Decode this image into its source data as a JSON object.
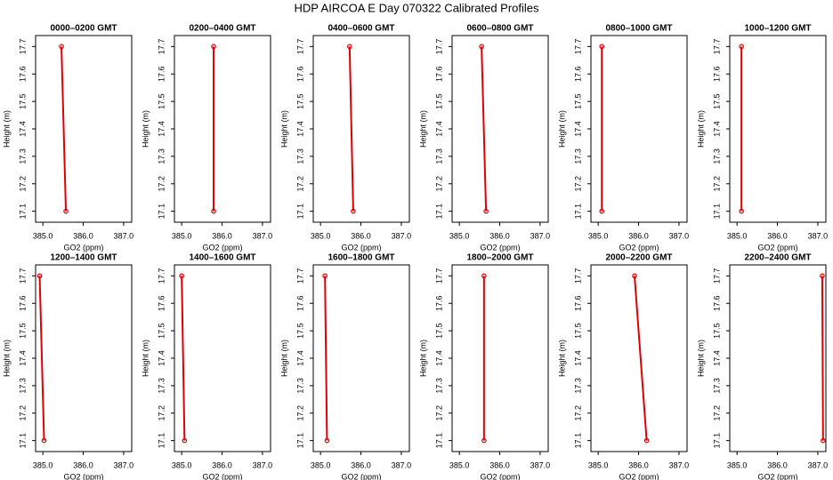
{
  "title": "HDP AIRCOA E  Day 070322  Calibrated Profiles",
  "chart_data": [
    {
      "type": "line",
      "title": "0000–0200 GMT",
      "x_label": "GO2 (ppm)",
      "y_label": "Height (m)",
      "x": [
        385.46,
        385.57
      ],
      "values": [
        17.7,
        17.1
      ],
      "color": "#e00000",
      "xlim": [
        384.82,
        387.2
      ],
      "ylim": [
        17.06,
        17.74
      ],
      "xticks": [
        {
          "value": 385,
          "label": "385.0"
        },
        {
          "value": 386,
          "label": "386.0"
        },
        {
          "value": 387,
          "label": "387.0"
        }
      ],
      "yticks": [
        17.1,
        17.2,
        17.3,
        17.4,
        17.5,
        17.6,
        17.7
      ]
    },
    {
      "type": "line",
      "title": "0200–0400 GMT",
      "x_label": "GO2 (ppm)",
      "y_label": "Height (m)",
      "x": [
        385.79,
        385.79
      ],
      "values": [
        17.7,
        17.1
      ],
      "color": "#e00000",
      "xlim": [
        384.82,
        387.2
      ],
      "ylim": [
        17.06,
        17.74
      ],
      "xticks": [
        {
          "value": 385,
          "label": "385.0"
        },
        {
          "value": 386,
          "label": "386.0"
        },
        {
          "value": 387,
          "label": "387.0"
        }
      ],
      "yticks": [
        17.1,
        17.2,
        17.3,
        17.4,
        17.5,
        17.6,
        17.7
      ]
    },
    {
      "type": "line",
      "title": "0400–0600 GMT",
      "x_label": "GO2 (ppm)",
      "y_label": "Height (m)",
      "x": [
        385.72,
        385.81
      ],
      "values": [
        17.7,
        17.1
      ],
      "color": "#e00000",
      "xlim": [
        384.82,
        387.2
      ],
      "ylim": [
        17.06,
        17.74
      ],
      "xticks": [
        {
          "value": 385,
          "label": "385.0"
        },
        {
          "value": 386,
          "label": "386.0"
        },
        {
          "value": 387,
          "label": "387.0"
        }
      ],
      "yticks": [
        17.1,
        17.2,
        17.3,
        17.4,
        17.5,
        17.6,
        17.7
      ]
    },
    {
      "type": "line",
      "title": "0600–0800 GMT",
      "x_label": "GO2 (ppm)",
      "y_label": "Height (m)",
      "x": [
        385.55,
        385.66
      ],
      "values": [
        17.7,
        17.1
      ],
      "color": "#e00000",
      "xlim": [
        384.82,
        387.2
      ],
      "ylim": [
        17.06,
        17.74
      ],
      "xticks": [
        {
          "value": 385,
          "label": "385.0"
        },
        {
          "value": 386,
          "label": "386.0"
        },
        {
          "value": 387,
          "label": "387.0"
        }
      ],
      "yticks": [
        17.1,
        17.2,
        17.3,
        17.4,
        17.5,
        17.6,
        17.7
      ]
    },
    {
      "type": "line",
      "title": "0800–1000 GMT",
      "x_label": "GO2 (ppm)",
      "y_label": "Height (m)",
      "x": [
        385.09,
        385.09
      ],
      "values": [
        17.7,
        17.1
      ],
      "color": "#e00000",
      "xlim": [
        384.82,
        387.2
      ],
      "ylim": [
        17.06,
        17.74
      ],
      "xticks": [
        {
          "value": 385,
          "label": "385.0"
        },
        {
          "value": 386,
          "label": "386.0"
        },
        {
          "value": 387,
          "label": "387.0"
        }
      ],
      "yticks": [
        17.1,
        17.2,
        17.3,
        17.4,
        17.5,
        17.6,
        17.7
      ]
    },
    {
      "type": "line",
      "title": "1000–1200 GMT",
      "x_label": "GO2 (ppm)",
      "y_label": "Height (m)",
      "x": [
        385.11,
        385.11
      ],
      "values": [
        17.7,
        17.1
      ],
      "color": "#e00000",
      "xlim": [
        384.82,
        387.2
      ],
      "ylim": [
        17.06,
        17.74
      ],
      "xticks": [
        {
          "value": 385,
          "label": "385.0"
        },
        {
          "value": 386,
          "label": "386.0"
        },
        {
          "value": 387,
          "label": "387.0"
        }
      ],
      "yticks": [
        17.1,
        17.2,
        17.3,
        17.4,
        17.5,
        17.6,
        17.7
      ]
    },
    {
      "type": "line",
      "title": "1200–1400 GMT",
      "x_label": "GO2 (ppm)",
      "y_label": "Height (m)",
      "x": [
        384.92,
        385.03
      ],
      "values": [
        17.7,
        17.1
      ],
      "color": "#e00000",
      "xlim": [
        384.82,
        387.2
      ],
      "ylim": [
        17.06,
        17.74
      ],
      "xticks": [
        {
          "value": 385,
          "label": "385.0"
        },
        {
          "value": 386,
          "label": "386.0"
        },
        {
          "value": 387,
          "label": "387.0"
        }
      ],
      "yticks": [
        17.1,
        17.2,
        17.3,
        17.4,
        17.5,
        17.6,
        17.7
      ]
    },
    {
      "type": "line",
      "title": "1400–1600 GMT",
      "x_label": "GO2 (ppm)",
      "y_label": "Height (m)",
      "x": [
        385.0,
        385.07
      ],
      "values": [
        17.7,
        17.1
      ],
      "color": "#e00000",
      "xlim": [
        384.82,
        387.2
      ],
      "ylim": [
        17.06,
        17.74
      ],
      "xticks": [
        {
          "value": 385,
          "label": "385.0"
        },
        {
          "value": 386,
          "label": "386.0"
        },
        {
          "value": 387,
          "label": "387.0"
        }
      ],
      "yticks": [
        17.1,
        17.2,
        17.3,
        17.4,
        17.5,
        17.6,
        17.7
      ]
    },
    {
      "type": "line",
      "title": "1600–1800 GMT",
      "x_label": "GO2 (ppm)",
      "y_label": "Height (m)",
      "x": [
        385.11,
        385.16
      ],
      "values": [
        17.7,
        17.1
      ],
      "color": "#e00000",
      "xlim": [
        384.82,
        387.2
      ],
      "ylim": [
        17.06,
        17.74
      ],
      "xticks": [
        {
          "value": 385,
          "label": "385.0"
        },
        {
          "value": 386,
          "label": "386.0"
        },
        {
          "value": 387,
          "label": "387.0"
        }
      ],
      "yticks": [
        17.1,
        17.2,
        17.3,
        17.4,
        17.5,
        17.6,
        17.7
      ]
    },
    {
      "type": "line",
      "title": "1800–2000 GMT",
      "x_label": "GO2 (ppm)",
      "y_label": "Height (m)",
      "x": [
        385.61,
        385.61
      ],
      "values": [
        17.7,
        17.1
      ],
      "color": "#e00000",
      "xlim": [
        384.82,
        387.2
      ],
      "ylim": [
        17.06,
        17.74
      ],
      "xticks": [
        {
          "value": 385,
          "label": "385.0"
        },
        {
          "value": 386,
          "label": "386.0"
        },
        {
          "value": 387,
          "label": "387.0"
        }
      ],
      "yticks": [
        17.1,
        17.2,
        17.3,
        17.4,
        17.5,
        17.6,
        17.7
      ]
    },
    {
      "type": "line",
      "title": "2000–2200 GMT",
      "x_label": "GO2 (ppm)",
      "y_label": "Height (m)",
      "x": [
        385.9,
        386.2
      ],
      "values": [
        17.7,
        17.1
      ],
      "color": "#e00000",
      "xlim": [
        384.82,
        387.2
      ],
      "ylim": [
        17.06,
        17.74
      ],
      "xticks": [
        {
          "value": 385,
          "label": "385.0"
        },
        {
          "value": 386,
          "label": "386.0"
        },
        {
          "value": 387,
          "label": "387.0"
        }
      ],
      "yticks": [
        17.1,
        17.2,
        17.3,
        17.4,
        17.5,
        17.6,
        17.7
      ]
    },
    {
      "type": "line",
      "title": "2200–2400 GMT",
      "x_label": "GO2 (ppm)",
      "y_label": "Height (m)",
      "x": [
        387.11,
        387.13
      ],
      "values": [
        17.7,
        17.1
      ],
      "color": "#e00000",
      "xlim": [
        384.82,
        387.2
      ],
      "ylim": [
        17.06,
        17.74
      ],
      "xticks": [
        {
          "value": 385,
          "label": "385.0"
        },
        {
          "value": 386,
          "label": "386.0"
        },
        {
          "value": 387,
          "label": "387.0"
        }
      ],
      "yticks": [
        17.1,
        17.2,
        17.3,
        17.4,
        17.5,
        17.6,
        17.7
      ]
    }
  ]
}
